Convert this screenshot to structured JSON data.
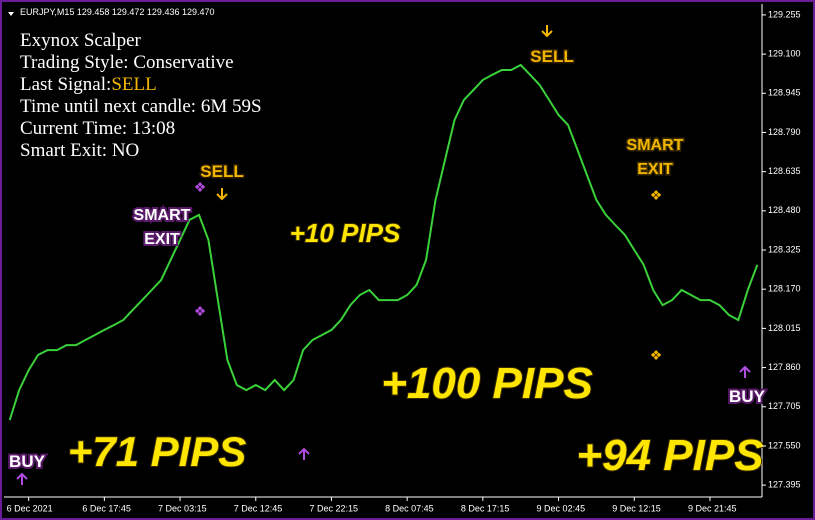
{
  "header": "EURJPY,M15  129.458 129.472 129.436 129.470",
  "panel": {
    "lines": [
      "Exynox Scalper",
      "Trading Style: Conservative",
      "Last Signal:",
      "Time until next candle: 6M 59S",
      "Current Time: 13:08",
      "Smart Exit: NO"
    ],
    "last_signal": "SELL"
  },
  "annotations": [
    "SELL",
    "SMART",
    "EXIT",
    "+10 PIPS",
    "+71 PIPS",
    "BUY",
    "+100 PIPS",
    "SELL",
    "SMART",
    "EXIT",
    "BUY",
    "+94 PIPS"
  ],
  "chart_data": {
    "type": "line",
    "categories": [
      null,
      null,
      "6 Dec 2021",
      null,
      null,
      null,
      null,
      null,
      null,
      null,
      "6 Dec 17:45",
      null,
      null,
      null,
      null,
      null,
      null,
      null,
      "7 Dec 03:15",
      null,
      null,
      null,
      null,
      null,
      null,
      null,
      "7 Dec 12:45",
      null,
      null,
      null,
      null,
      null,
      null,
      null,
      "7 Dec 22:15",
      null,
      null,
      null,
      null,
      null,
      null,
      null,
      "8 Dec 07:45",
      null,
      null,
      null,
      null,
      null,
      null,
      null,
      "8 Dec 17:15",
      null,
      null,
      null,
      null,
      null,
      null,
      null,
      "9 Dec 02:45",
      null,
      null,
      null,
      null,
      null,
      null,
      null,
      "9 Dec 12:15",
      null,
      null,
      null,
      null,
      null,
      null,
      null,
      "9 Dec 21:45",
      null,
      null,
      null,
      null,
      null
    ],
    "series": [
      {
        "color": "#3ad13a",
        "values": [
          127.652,
          127.771,
          127.85,
          127.91,
          127.929,
          127.929,
          127.949,
          127.949,
          127.969,
          127.989,
          128.009,
          128.028,
          128.048,
          128.088,
          128.127,
          128.167,
          128.206,
          128.286,
          128.365,
          128.444,
          128.464,
          128.365,
          128.127,
          127.89,
          127.791,
          127.771,
          127.791,
          127.771,
          127.811,
          127.771,
          127.811,
          127.929,
          127.969,
          127.989,
          128.009,
          128.048,
          128.107,
          128.147,
          128.167,
          128.127,
          128.127,
          128.127,
          128.147,
          128.187,
          128.286,
          128.523,
          128.681,
          128.839,
          128.919,
          128.958,
          128.998,
          129.018,
          129.037,
          129.037,
          129.057,
          129.018,
          128.978,
          128.919,
          128.859,
          128.82,
          128.721,
          128.622,
          128.523,
          128.464,
          128.424,
          128.385,
          128.325,
          128.266,
          128.167,
          128.107,
          128.127,
          128.167,
          128.147,
          128.127,
          128.127,
          128.107,
          128.068,
          128.048,
          128.167,
          128.266
        ]
      }
    ],
    "ylim": [
      127.348,
      129.314
    ],
    "yticks": [
      129.255,
      {
        "value": 129.1,
        "label": "129.100"
      },
      128.945,
      {
        "value": 128.79,
        "label": "128.790"
      },
      128.635,
      {
        "value": 128.48,
        "label": "128.480"
      },
      128.325,
      {
        "value": 128.17,
        "label": "128.170"
      },
      128.015,
      {
        "value": 127.86,
        "label": "127.860"
      },
      127.705,
      {
        "value": 127.55,
        "label": "127.550"
      },
      127.395
    ]
  }
}
